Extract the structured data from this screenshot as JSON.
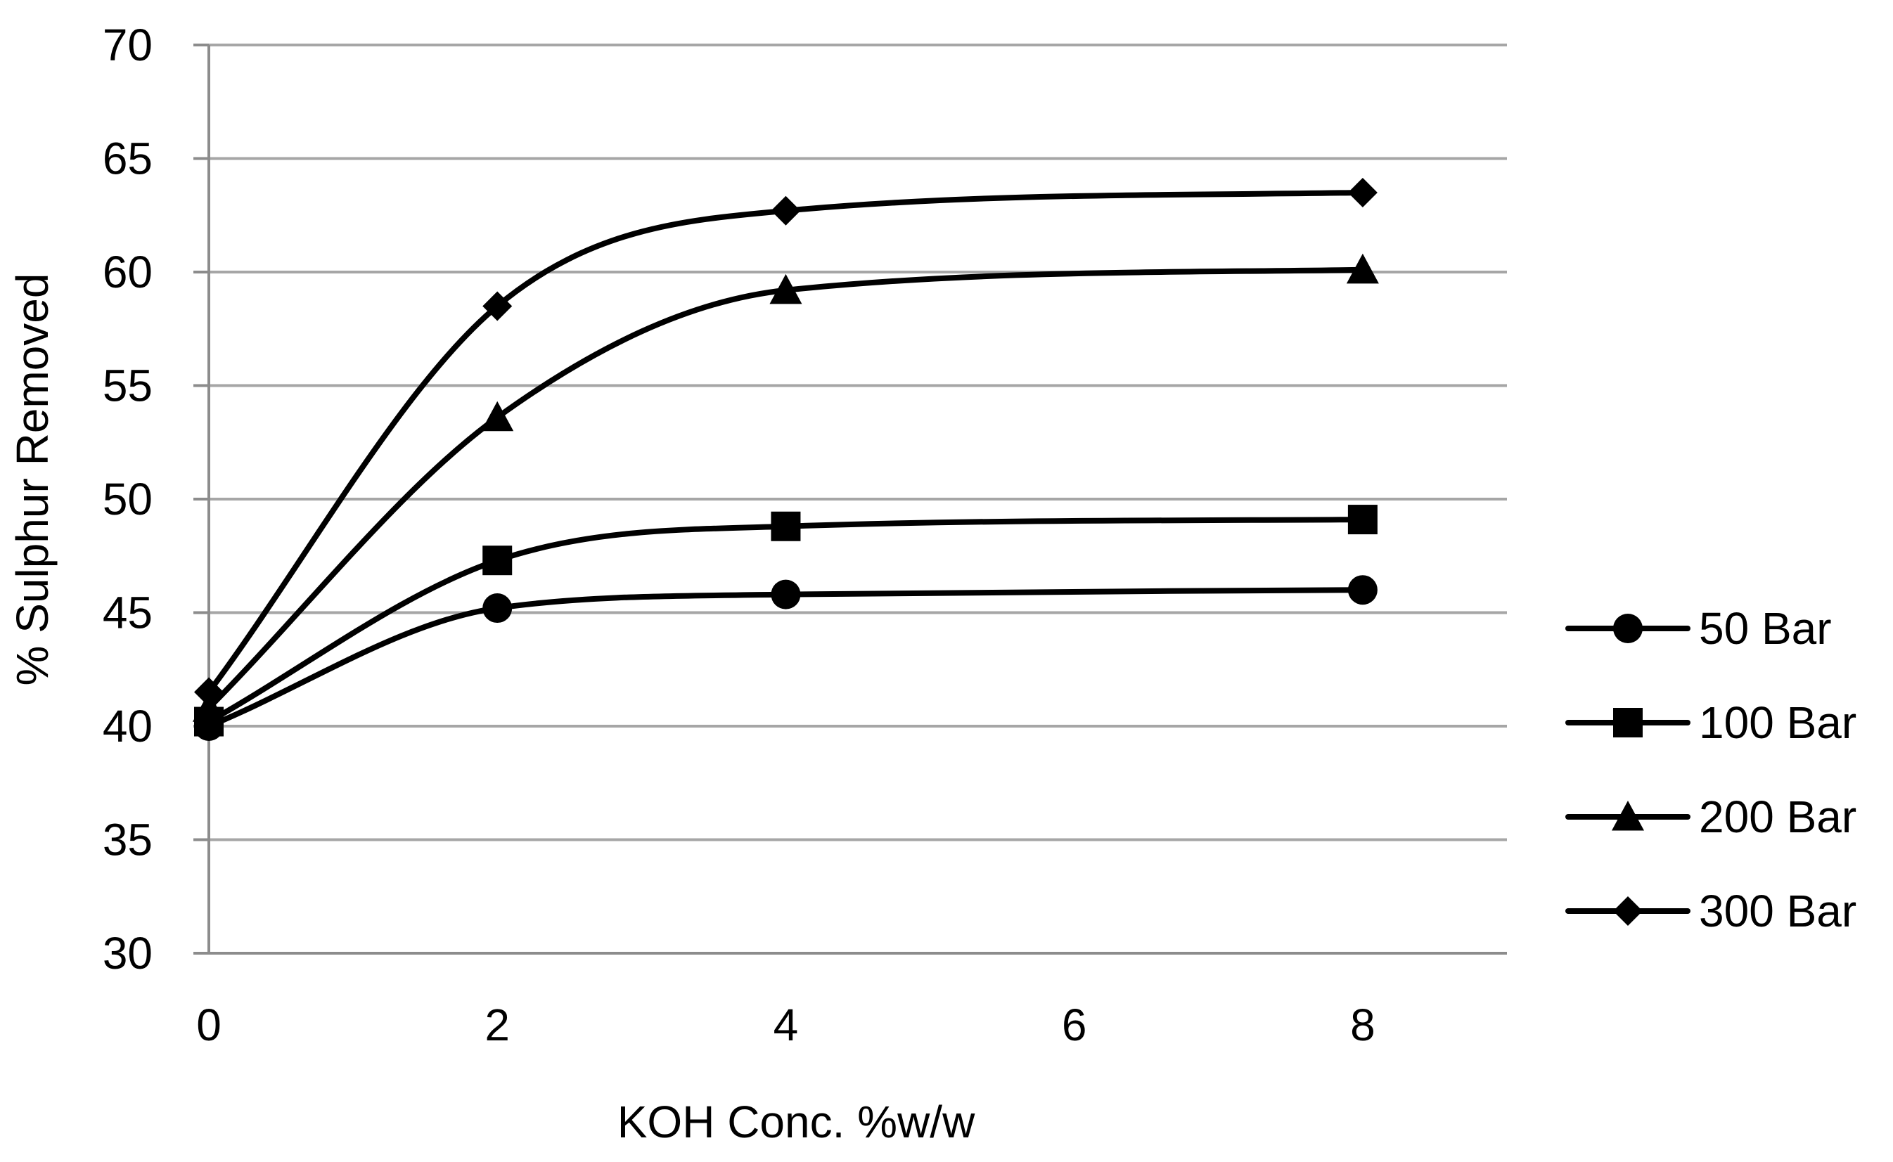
{
  "chart_data": {
    "type": "line",
    "title": "",
    "xlabel": "KOH Conc. %w/w",
    "ylabel": "% Sulphur Removed",
    "xlim": [
      0,
      9
    ],
    "ylim": [
      30,
      70
    ],
    "xticks": [
      0,
      2,
      4,
      6,
      8
    ],
    "yticks": [
      30,
      35,
      40,
      45,
      50,
      55,
      60,
      65,
      70
    ],
    "grid": "horizontal",
    "smooth": true,
    "legend_position": "right",
    "colors": {
      "line": "#000000",
      "grid": "#a6a6a6",
      "axis": "#8c8c8c"
    },
    "x": [
      0,
      2,
      4,
      8
    ],
    "series": [
      {
        "name": "50 Bar",
        "marker": "circle",
        "values": [
          40.0,
          45.2,
          45.8,
          46.0
        ]
      },
      {
        "name": "100 Bar",
        "marker": "square",
        "values": [
          40.2,
          47.3,
          48.8,
          49.1
        ]
      },
      {
        "name": "200 Bar",
        "marker": "triangle",
        "values": [
          40.8,
          53.6,
          59.2,
          60.1
        ]
      },
      {
        "name": "300 Bar",
        "marker": "diamond",
        "values": [
          41.5,
          58.5,
          62.7,
          63.5
        ]
      }
    ]
  }
}
